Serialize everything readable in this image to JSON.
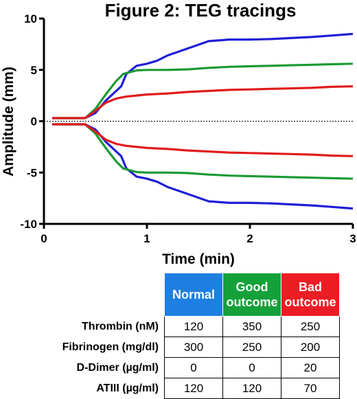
{
  "chart_data": {
    "type": "line",
    "title": "Figure 2: TEG tracings",
    "xlabel": "Time (min)",
    "ylabel": "Amplitude (mm)",
    "xlim": [
      0,
      3
    ],
    "ylim": [
      -10,
      10
    ],
    "x_ticks": [
      "0",
      "1",
      "2",
      "3"
    ],
    "y_ticks": [
      "10",
      "5",
      "0",
      "-5",
      "-10"
    ],
    "reference_line": {
      "y": 0,
      "style": "dotted"
    },
    "grid": false,
    "series": [
      {
        "group": "Normal",
        "color": "#1f1fd6",
        "side": "upper",
        "points": [
          [
            0.08,
            0.3
          ],
          [
            0.4,
            0.3
          ],
          [
            0.5,
            0.8
          ],
          [
            0.6,
            2.0
          ],
          [
            0.75,
            3.4
          ],
          [
            0.8,
            4.6
          ],
          [
            0.9,
            5.4
          ],
          [
            1.0,
            5.6
          ],
          [
            1.1,
            5.9
          ],
          [
            1.2,
            6.4
          ],
          [
            1.4,
            7.1
          ],
          [
            1.6,
            7.8
          ],
          [
            1.8,
            7.95
          ],
          [
            2.0,
            7.95
          ],
          [
            2.2,
            8.0
          ],
          [
            2.4,
            8.1
          ],
          [
            2.6,
            8.2
          ],
          [
            2.8,
            8.35
          ],
          [
            3.0,
            8.5
          ]
        ]
      },
      {
        "group": "Normal",
        "color": "#1f1fd6",
        "side": "lower",
        "points": [
          [
            0.08,
            -0.3
          ],
          [
            0.4,
            -0.3
          ],
          [
            0.5,
            -0.8
          ],
          [
            0.6,
            -2.0
          ],
          [
            0.75,
            -3.4
          ],
          [
            0.8,
            -4.6
          ],
          [
            0.9,
            -5.4
          ],
          [
            1.0,
            -5.6
          ],
          [
            1.1,
            -5.9
          ],
          [
            1.2,
            -6.4
          ],
          [
            1.4,
            -7.1
          ],
          [
            1.6,
            -7.8
          ],
          [
            1.8,
            -7.95
          ],
          [
            2.0,
            -7.95
          ],
          [
            2.2,
            -8.0
          ],
          [
            2.4,
            -8.1
          ],
          [
            2.6,
            -8.2
          ],
          [
            2.8,
            -8.35
          ],
          [
            3.0,
            -8.5
          ]
        ]
      },
      {
        "group": "Good outcome",
        "color": "#1a9a33",
        "side": "upper",
        "points": [
          [
            0.08,
            0.3
          ],
          [
            0.4,
            0.3
          ],
          [
            0.5,
            1.2
          ],
          [
            0.6,
            2.6
          ],
          [
            0.7,
            3.9
          ],
          [
            0.77,
            4.6
          ],
          [
            0.9,
            4.95
          ],
          [
            1.0,
            5.0
          ],
          [
            1.2,
            5.0
          ],
          [
            1.4,
            5.05
          ],
          [
            1.6,
            5.2
          ],
          [
            1.8,
            5.3
          ],
          [
            2.0,
            5.35
          ],
          [
            2.2,
            5.4
          ],
          [
            2.4,
            5.45
          ],
          [
            2.6,
            5.5
          ],
          [
            2.8,
            5.55
          ],
          [
            3.0,
            5.6
          ]
        ]
      },
      {
        "group": "Good outcome",
        "color": "#1a9a33",
        "side": "lower",
        "points": [
          [
            0.08,
            -0.3
          ],
          [
            0.4,
            -0.3
          ],
          [
            0.5,
            -1.2
          ],
          [
            0.6,
            -2.6
          ],
          [
            0.7,
            -3.9
          ],
          [
            0.77,
            -4.6
          ],
          [
            0.9,
            -4.95
          ],
          [
            1.0,
            -5.0
          ],
          [
            1.2,
            -5.0
          ],
          [
            1.4,
            -5.05
          ],
          [
            1.6,
            -5.2
          ],
          [
            1.8,
            -5.3
          ],
          [
            2.0,
            -5.35
          ],
          [
            2.2,
            -5.4
          ],
          [
            2.4,
            -5.45
          ],
          [
            2.6,
            -5.5
          ],
          [
            2.8,
            -5.55
          ],
          [
            3.0,
            -5.6
          ]
        ]
      },
      {
        "group": "Bad outcome",
        "color": "#e01c1c",
        "side": "upper",
        "points": [
          [
            0.08,
            0.3
          ],
          [
            0.4,
            0.3
          ],
          [
            0.5,
            1.0
          ],
          [
            0.6,
            1.8
          ],
          [
            0.7,
            2.2
          ],
          [
            0.8,
            2.4
          ],
          [
            1.0,
            2.6
          ],
          [
            1.2,
            2.7
          ],
          [
            1.4,
            2.85
          ],
          [
            1.6,
            2.95
          ],
          [
            1.8,
            3.05
          ],
          [
            2.0,
            3.1
          ],
          [
            2.2,
            3.15
          ],
          [
            2.4,
            3.2
          ],
          [
            2.6,
            3.25
          ],
          [
            2.8,
            3.35
          ],
          [
            3.0,
            3.4
          ]
        ]
      },
      {
        "group": "Bad outcome",
        "color": "#e01c1c",
        "side": "lower",
        "points": [
          [
            0.08,
            -0.3
          ],
          [
            0.4,
            -0.3
          ],
          [
            0.5,
            -1.0
          ],
          [
            0.6,
            -1.8
          ],
          [
            0.7,
            -2.2
          ],
          [
            0.8,
            -2.4
          ],
          [
            1.0,
            -2.6
          ],
          [
            1.2,
            -2.7
          ],
          [
            1.4,
            -2.85
          ],
          [
            1.6,
            -2.95
          ],
          [
            1.8,
            -3.05
          ],
          [
            2.0,
            -3.1
          ],
          [
            2.2,
            -3.15
          ],
          [
            2.4,
            -3.2
          ],
          [
            2.6,
            -3.25
          ],
          [
            2.8,
            -3.35
          ],
          [
            3.0,
            -3.4
          ]
        ]
      }
    ]
  },
  "table": {
    "columns": [
      {
        "label_lines": [
          "Normal"
        ],
        "color": "#1f7fe0"
      },
      {
        "label_lines": [
          "Good",
          "outcome"
        ],
        "color": "#15a13a"
      },
      {
        "label_lines": [
          "Bad",
          "outcome"
        ],
        "color": "#ee1c24"
      }
    ],
    "rows": [
      {
        "label": "Thrombin (nM)",
        "values": [
          "120",
          "350",
          "250"
        ]
      },
      {
        "label": "Fibrinogen (mg/dl)",
        "values": [
          "300",
          "250",
          "200"
        ]
      },
      {
        "label": "D-Dimer (µg/ml)",
        "values": [
          "0",
          "0",
          "20"
        ]
      },
      {
        "label": "ATIII (µg/ml)",
        "values": [
          "120",
          "120",
          "70"
        ]
      }
    ]
  }
}
